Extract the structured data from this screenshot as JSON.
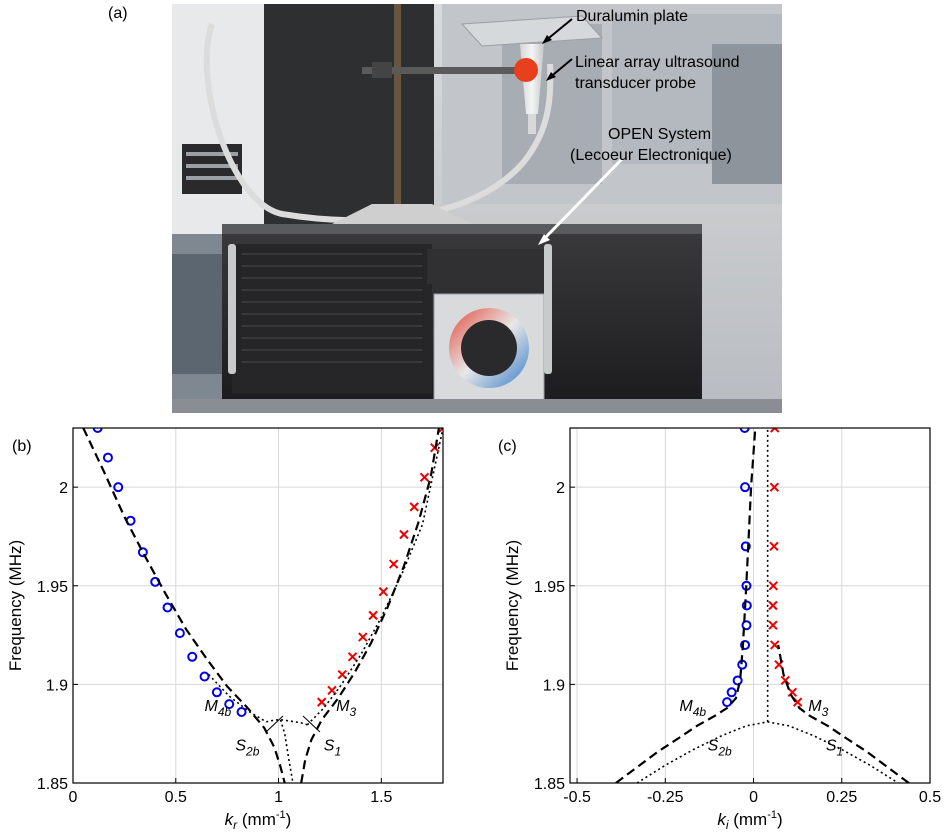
{
  "panel_labels": {
    "a": "(a)",
    "b": "(b)",
    "c": "(c)"
  },
  "photo": {
    "annotations": {
      "plate": "Duralumin plate",
      "probe_line1": "Linear array ultrasound",
      "probe_line2": "transducer probe",
      "system_line1": "OPEN System",
      "system_line2": "(Lecoeur Electronique)"
    }
  },
  "chart_data": [
    {
      "type": "line",
      "panel": "(b)",
      "ylabel": "Frequency (MHz)",
      "xlabel_main": "k",
      "xlabel_sub": "r",
      "xlabel_unit": " (mm",
      "xlabel_exp": "-1",
      "xlabel_close": ")",
      "xlim": [
        0,
        1.8
      ],
      "ylim": [
        1.85,
        2.03
      ],
      "xticks": [
        0,
        0.5,
        1,
        1.5
      ],
      "xtick_labels": [
        "0",
        "0.5",
        "1",
        "1.5"
      ],
      "yticks": [
        1.85,
        1.9,
        1.95,
        2.0
      ],
      "ytick_labels": [
        "1.85",
        "1.9",
        "1.95",
        "2"
      ],
      "grid": true,
      "series": [
        {
          "marker": "circle",
          "color": "#0000ee",
          "x": [
            0.12,
            0.17,
            0.22,
            0.28,
            0.34,
            0.4,
            0.46,
            0.52,
            0.58,
            0.64,
            0.7,
            0.76,
            0.82
          ],
          "y": [
            2.03,
            2.015,
            2.0,
            1.983,
            1.967,
            1.952,
            1.939,
            1.926,
            1.914,
            1.904,
            1.896,
            1.89,
            1.886
          ]
        },
        {
          "marker": "cross",
          "color": "#ee0000",
          "x": [
            1.21,
            1.26,
            1.31,
            1.36,
            1.41,
            1.46,
            1.51,
            1.56,
            1.61,
            1.66,
            1.71,
            1.76,
            1.8
          ],
          "y": [
            1.891,
            1.897,
            1.905,
            1.914,
            1.924,
            1.935,
            1.947,
            1.961,
            1.976,
            1.99,
            2.005,
            2.02,
            2.03
          ]
        },
        {
          "style": "dashed",
          "color": "#000000",
          "x": [
            0.05,
            0.15,
            0.25,
            0.35,
            0.45,
            0.55,
            0.65,
            0.75,
            0.85,
            0.93,
            0.98,
            1.01,
            1.03
          ],
          "y": [
            2.03,
            2.008,
            1.985,
            1.965,
            1.946,
            1.928,
            1.913,
            1.899,
            1.888,
            1.878,
            1.868,
            1.858,
            1.85
          ]
        },
        {
          "style": "dashed",
          "color": "#000000",
          "x": [
            1.11,
            1.13,
            1.16,
            1.21,
            1.29,
            1.37,
            1.45,
            1.53,
            1.61,
            1.68,
            1.74,
            1.78
          ],
          "y": [
            1.85,
            1.862,
            1.872,
            1.882,
            1.893,
            1.906,
            1.921,
            1.939,
            1.96,
            1.982,
            2.005,
            2.03
          ]
        },
        {
          "style": "dotted",
          "color": "#000000",
          "x": [
            0.94,
            0.96,
            0.99,
            1.02,
            1.05,
            1.08,
            1.11,
            1.14
          ],
          "y": [
            1.881,
            1.8815,
            1.882,
            1.882,
            1.8815,
            1.881,
            1.8805,
            1.8795
          ]
        },
        {
          "style": "dotted",
          "color": "#000000",
          "x": [
            1.01,
            1.03,
            1.05,
            1.07
          ],
          "y": [
            1.882,
            1.875,
            1.862,
            1.85
          ]
        },
        {
          "style": "dotted",
          "color": "#000000",
          "x": [
            0.66,
            0.76,
            0.86,
            0.94
          ],
          "y": [
            1.905,
            1.894,
            1.886,
            1.881
          ]
        },
        {
          "style": "dotted",
          "color": "#000000",
          "x": [
            1.14,
            1.22,
            1.3,
            1.4,
            1.5,
            1.6,
            1.7,
            1.8
          ],
          "y": [
            1.8795,
            1.888,
            1.899,
            1.915,
            1.934,
            1.956,
            1.981,
            2.03
          ]
        }
      ],
      "annotations": [
        {
          "main": "M",
          "sub": "4b",
          "x": 0.64,
          "y": 1.8865
        },
        {
          "main": "M",
          "sub": "3",
          "x": 1.28,
          "y": 1.8865
        },
        {
          "main": "S",
          "sub": "2b",
          "x": 0.79,
          "y": 1.8665
        },
        {
          "main": "S",
          "sub": "1",
          "x": 1.22,
          "y": 1.8665
        }
      ]
    },
    {
      "type": "line",
      "panel": "(c)",
      "ylabel": "Frequency (MHz)",
      "xlabel_main": "k",
      "xlabel_sub": "i",
      "xlabel_unit": " (mm",
      "xlabel_exp": "-1",
      "xlabel_close": ")",
      "xlim": [
        -0.52,
        0.5
      ],
      "ylim": [
        1.85,
        2.03
      ],
      "xticks": [
        -0.5,
        -0.25,
        0,
        0.25,
        0.5
      ],
      "xtick_labels": [
        "-0.5",
        "-0.25",
        "0",
        "0.25",
        "0.5"
      ],
      "yticks": [
        1.85,
        1.9,
        1.95,
        2.0
      ],
      "ytick_labels": [
        "1.85",
        "1.9",
        "1.95",
        "2"
      ],
      "grid": true,
      "series": [
        {
          "marker": "circle",
          "color": "#0000ee",
          "x": [
            -0.025,
            -0.024,
            -0.022,
            -0.02,
            -0.019,
            -0.02,
            -0.024,
            -0.032,
            -0.045,
            -0.062,
            -0.075
          ],
          "y": [
            2.03,
            2.0,
            1.97,
            1.95,
            1.94,
            1.93,
            1.92,
            1.91,
            1.902,
            1.896,
            1.891
          ]
        },
        {
          "marker": "cross",
          "color": "#ee0000",
          "x": [
            0.06,
            0.059,
            0.058,
            0.056,
            0.055,
            0.055,
            0.06,
            0.072,
            0.09,
            0.11,
            0.125
          ],
          "y": [
            2.03,
            2.0,
            1.97,
            1.95,
            1.94,
            1.93,
            1.92,
            1.91,
            1.902,
            1.896,
            1.891
          ]
        },
        {
          "style": "dashed",
          "color": "#000000",
          "x": [
            -0.39,
            -0.33,
            -0.27,
            -0.21,
            -0.16,
            -0.11,
            -0.075,
            -0.05,
            -0.038,
            -0.03,
            -0.022,
            -0.015,
            -0.007,
            0.005
          ],
          "y": [
            1.85,
            1.858,
            1.866,
            1.873,
            1.879,
            1.884,
            1.888,
            1.893,
            1.902,
            1.92,
            1.945,
            1.97,
            2.0,
            2.03
          ]
        },
        {
          "style": "dashed",
          "color": "#000000",
          "x": [
            0.44,
            0.38,
            0.32,
            0.26,
            0.21,
            0.16,
            0.13,
            0.105,
            0.085,
            0.07
          ],
          "y": [
            1.85,
            1.858,
            1.866,
            1.873,
            1.879,
            1.884,
            1.888,
            1.895,
            1.905,
            1.92
          ]
        },
        {
          "style": "dotted",
          "color": "#000000",
          "x": [
            -0.33,
            -0.25,
            -0.17,
            -0.09,
            -0.02,
            0.04,
            0.1,
            0.17,
            0.25,
            0.33,
            0.41
          ],
          "y": [
            1.85,
            1.859,
            1.867,
            1.874,
            1.879,
            1.881,
            1.879,
            1.874,
            1.867,
            1.859,
            1.85
          ]
        },
        {
          "style": "dotted",
          "color": "#000000",
          "x": [
            0.04,
            0.04
          ],
          "y": [
            1.881,
            2.03
          ]
        }
      ],
      "annotations": [
        {
          "main": "M",
          "sub": "4b",
          "x": -0.21,
          "y": 1.8865
        },
        {
          "main": "M",
          "sub": "3",
          "x": 0.155,
          "y": 1.8865
        },
        {
          "main": "S",
          "sub": "2b",
          "x": -0.13,
          "y": 1.8665
        },
        {
          "main": "S",
          "sub": "1",
          "x": 0.205,
          "y": 1.8665
        }
      ]
    }
  ]
}
